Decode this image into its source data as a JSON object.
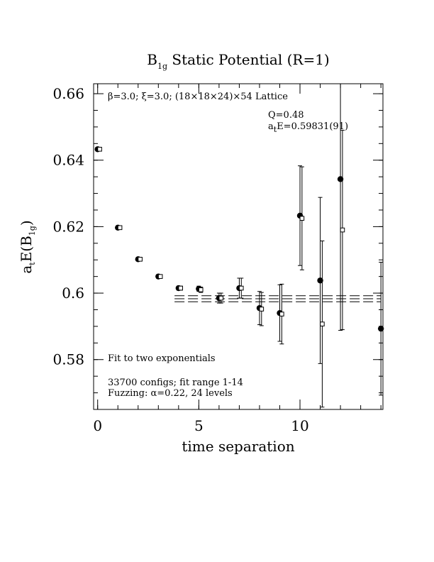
{
  "chart_data": {
    "type": "scatter",
    "title": {
      "main": "B",
      "sub": "1g",
      "rest": " Static Potential (R=1)"
    },
    "xlabel": "time separation",
    "ylabel": {
      "pre": "a",
      "sub1": "t",
      "mid": "E(B",
      "sub2": "1g",
      "post": ")"
    },
    "xlim": [
      -0.2,
      14.1
    ],
    "ylim": [
      0.565,
      0.663
    ],
    "xticks": [
      0,
      5,
      10
    ],
    "xtick_labels": [
      "0",
      "5",
      "10"
    ],
    "yticks": [
      0.58,
      0.6,
      0.62,
      0.64,
      0.66
    ],
    "ytick_labels": [
      "0.58",
      "0.6",
      "0.62",
      "0.64",
      "0.66"
    ],
    "annotations": {
      "lattice": "β=3.0; ξ=3.0; (18×18×24)×54 Lattice",
      "q": "Q=0.48",
      "energy_pre": "a",
      "energy_sub": "t",
      "energy_post": "E=0.59831(91)",
      "fit_type": "Fit to two exponentials",
      "configs": "33700 configs; fit range 1-14",
      "fuzzing": "Fuzzing: α=0.22, 24 levels"
    },
    "fit": {
      "center": 0.59831,
      "error": 0.00091,
      "x_range": [
        3.8,
        14.0
      ]
    },
    "series": [
      {
        "marker": "filled-circle",
        "points": [
          {
            "x": 0,
            "y": 0.6433,
            "err": 0.0004
          },
          {
            "x": 1,
            "y": 0.6197,
            "err": 0.0004
          },
          {
            "x": 2,
            "y": 0.6102,
            "err": 0.0004
          },
          {
            "x": 3,
            "y": 0.605,
            "err": 0.0005
          },
          {
            "x": 4,
            "y": 0.6015,
            "err": 0.0006
          },
          {
            "x": 5,
            "y": 0.6013,
            "err": 0.0008
          },
          {
            "x": 6,
            "y": 0.5985,
            "err": 0.0015
          },
          {
            "x": 7,
            "y": 0.6015,
            "err": 0.003
          },
          {
            "x": 8,
            "y": 0.5955,
            "err": 0.005
          },
          {
            "x": 9,
            "y": 0.594,
            "err": 0.0085
          },
          {
            "x": 10,
            "y": 0.6233,
            "err": 0.015
          },
          {
            "x": 11,
            "y": 0.6038,
            "err": 0.025
          },
          {
            "x": 12,
            "y": 0.6343,
            "err": 0.0455
          },
          {
            "x": 14,
            "y": 0.5893,
            "err": 0.02
          }
        ]
      },
      {
        "marker": "open-square",
        "points": [
          {
            "x": 0.1,
            "y": 0.6433,
            "err": 0.0004
          },
          {
            "x": 1.1,
            "y": 0.6197,
            "err": 0.0004
          },
          {
            "x": 2.1,
            "y": 0.6102,
            "err": 0.0004
          },
          {
            "x": 3.1,
            "y": 0.605,
            "err": 0.0005
          },
          {
            "x": 4.1,
            "y": 0.6015,
            "err": 0.0006
          },
          {
            "x": 5.1,
            "y": 0.601,
            "err": 0.0008
          },
          {
            "x": 6.1,
            "y": 0.5985,
            "err": 0.0015
          },
          {
            "x": 7.1,
            "y": 0.6015,
            "err": 0.003
          },
          {
            "x": 8.1,
            "y": 0.5952,
            "err": 0.005
          },
          {
            "x": 9.1,
            "y": 0.5937,
            "err": 0.009
          },
          {
            "x": 10.1,
            "y": 0.6225,
            "err": 0.0155
          },
          {
            "x": 11.1,
            "y": 0.5907,
            "err": 0.025
          },
          {
            "x": 12.1,
            "y": 0.619,
            "err": 0.03
          }
        ]
      }
    ]
  }
}
